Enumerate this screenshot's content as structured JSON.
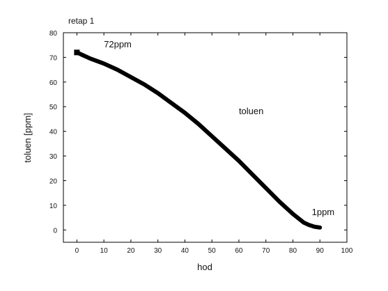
{
  "chart_data": {
    "type": "line",
    "title": "retap 1",
    "xlabel": "hod",
    "ylabel": "toluen [ppm]",
    "xlim": [
      -5,
      100
    ],
    "ylim": [
      -5,
      80
    ],
    "x_ticks": [
      0,
      10,
      20,
      30,
      40,
      50,
      60,
      70,
      80,
      90,
      100
    ],
    "y_ticks": [
      0,
      10,
      20,
      30,
      40,
      50,
      60,
      70,
      80
    ],
    "grid": false,
    "series": [
      {
        "name": "toluen",
        "color": "#000000",
        "x": [
          0,
          2,
          5,
          10,
          15,
          20,
          25,
          30,
          35,
          40,
          45,
          50,
          55,
          60,
          65,
          70,
          75,
          80,
          84,
          86,
          88,
          90
        ],
        "y": [
          72,
          71,
          69.5,
          67.5,
          65,
          62,
          59,
          55.5,
          51.5,
          47.5,
          43,
          38,
          33,
          28,
          22.5,
          17,
          11.5,
          6.5,
          3,
          2,
          1.3,
          1
        ]
      }
    ],
    "annotations": [
      {
        "text": "72ppm",
        "x": 10,
        "y": 74
      },
      {
        "text": "toluen",
        "x": 60,
        "y": 47
      },
      {
        "text": "1ppm",
        "x": 87,
        "y": 6
      }
    ]
  }
}
